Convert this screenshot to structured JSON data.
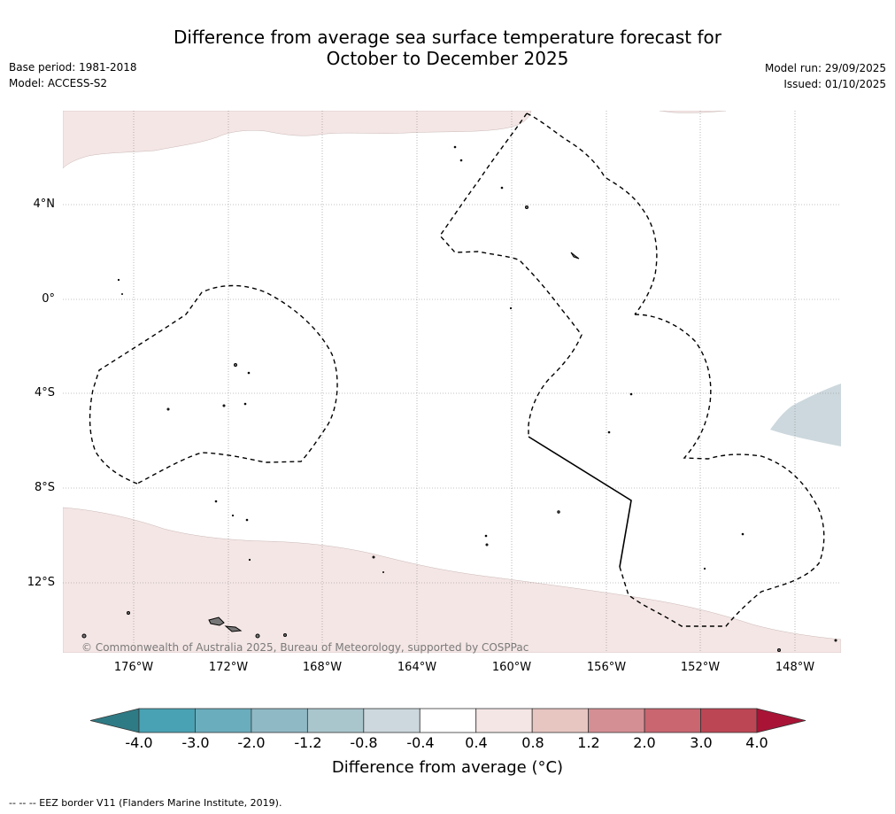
{
  "header": {
    "title_line1": "Difference from average sea surface temperature forecast for",
    "title_line2": "October to December 2025",
    "base_period": "Base period: 1981-2018",
    "model": "Model: ACCESS-S2",
    "model_run": "Model run: 29/09/2025",
    "issued": "Issued: 01/10/2025"
  },
  "map": {
    "lat_labels": [
      "4°N",
      "0°",
      "4°S",
      "8°S",
      "12°S"
    ],
    "lon_labels": [
      "176°W",
      "172°W",
      "168°W",
      "164°W",
      "160°W",
      "156°W",
      "152°W",
      "148°W"
    ],
    "copyright": "© Commonwealth of Australia 2025, Bureau of Meteorology, supported by COSPPac",
    "colors": {
      "warm_anomaly": "#f4e6e5",
      "cool_anomaly": "#ccd8dd",
      "eez_border": "#000000"
    }
  },
  "colorbar": {
    "ticks": [
      "-4.0",
      "-3.0",
      "-2.0",
      "-1.2",
      "-0.8",
      "-0.4",
      "0.4",
      "0.8",
      "1.2",
      "2.0",
      "3.0",
      "4.0"
    ],
    "colors": [
      "#2f7b85",
      "#49a2b3",
      "#6aadbd",
      "#8fb9c5",
      "#a9c6cd",
      "#ccd8dd",
      "#ffffff",
      "#f4e6e5",
      "#e7c5c1",
      "#d48f94",
      "#c96670",
      "#bd4654",
      "#a91436"
    ],
    "title": "Difference from average (°C)"
  },
  "footer": {
    "legend": "--  --  -- EEZ border V11 (Flanders Marine Institute, 2019)."
  }
}
